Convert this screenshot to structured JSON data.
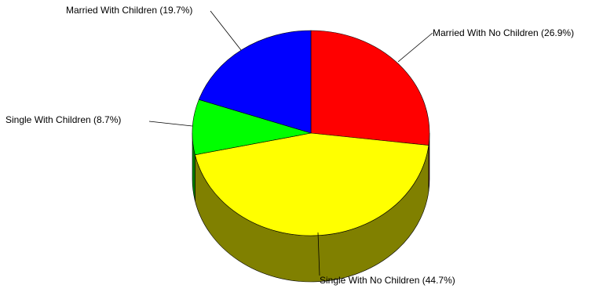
{
  "chart_data": {
    "type": "pie",
    "style": "3d",
    "slices": [
      {
        "label": "Married With No Children",
        "value": 26.9,
        "text": "Married With No Children (26.9%)",
        "color": "#ff0000",
        "side_color": "#7f0000"
      },
      {
        "label": "Single With No Children",
        "value": 44.7,
        "text": "Single With No Children (44.7%)",
        "color": "#ffff00",
        "side_color": "#808000"
      },
      {
        "label": "Single With Children",
        "value": 8.7,
        "text": "Single With Children (8.7%)",
        "color": "#00ff00",
        "side_color": "#008000"
      },
      {
        "label": "Married With Children",
        "value": 19.7,
        "text": "Married With Children (19.7%)",
        "color": "#0000ff",
        "side_color": "#00007f"
      }
    ],
    "legend": "none"
  }
}
